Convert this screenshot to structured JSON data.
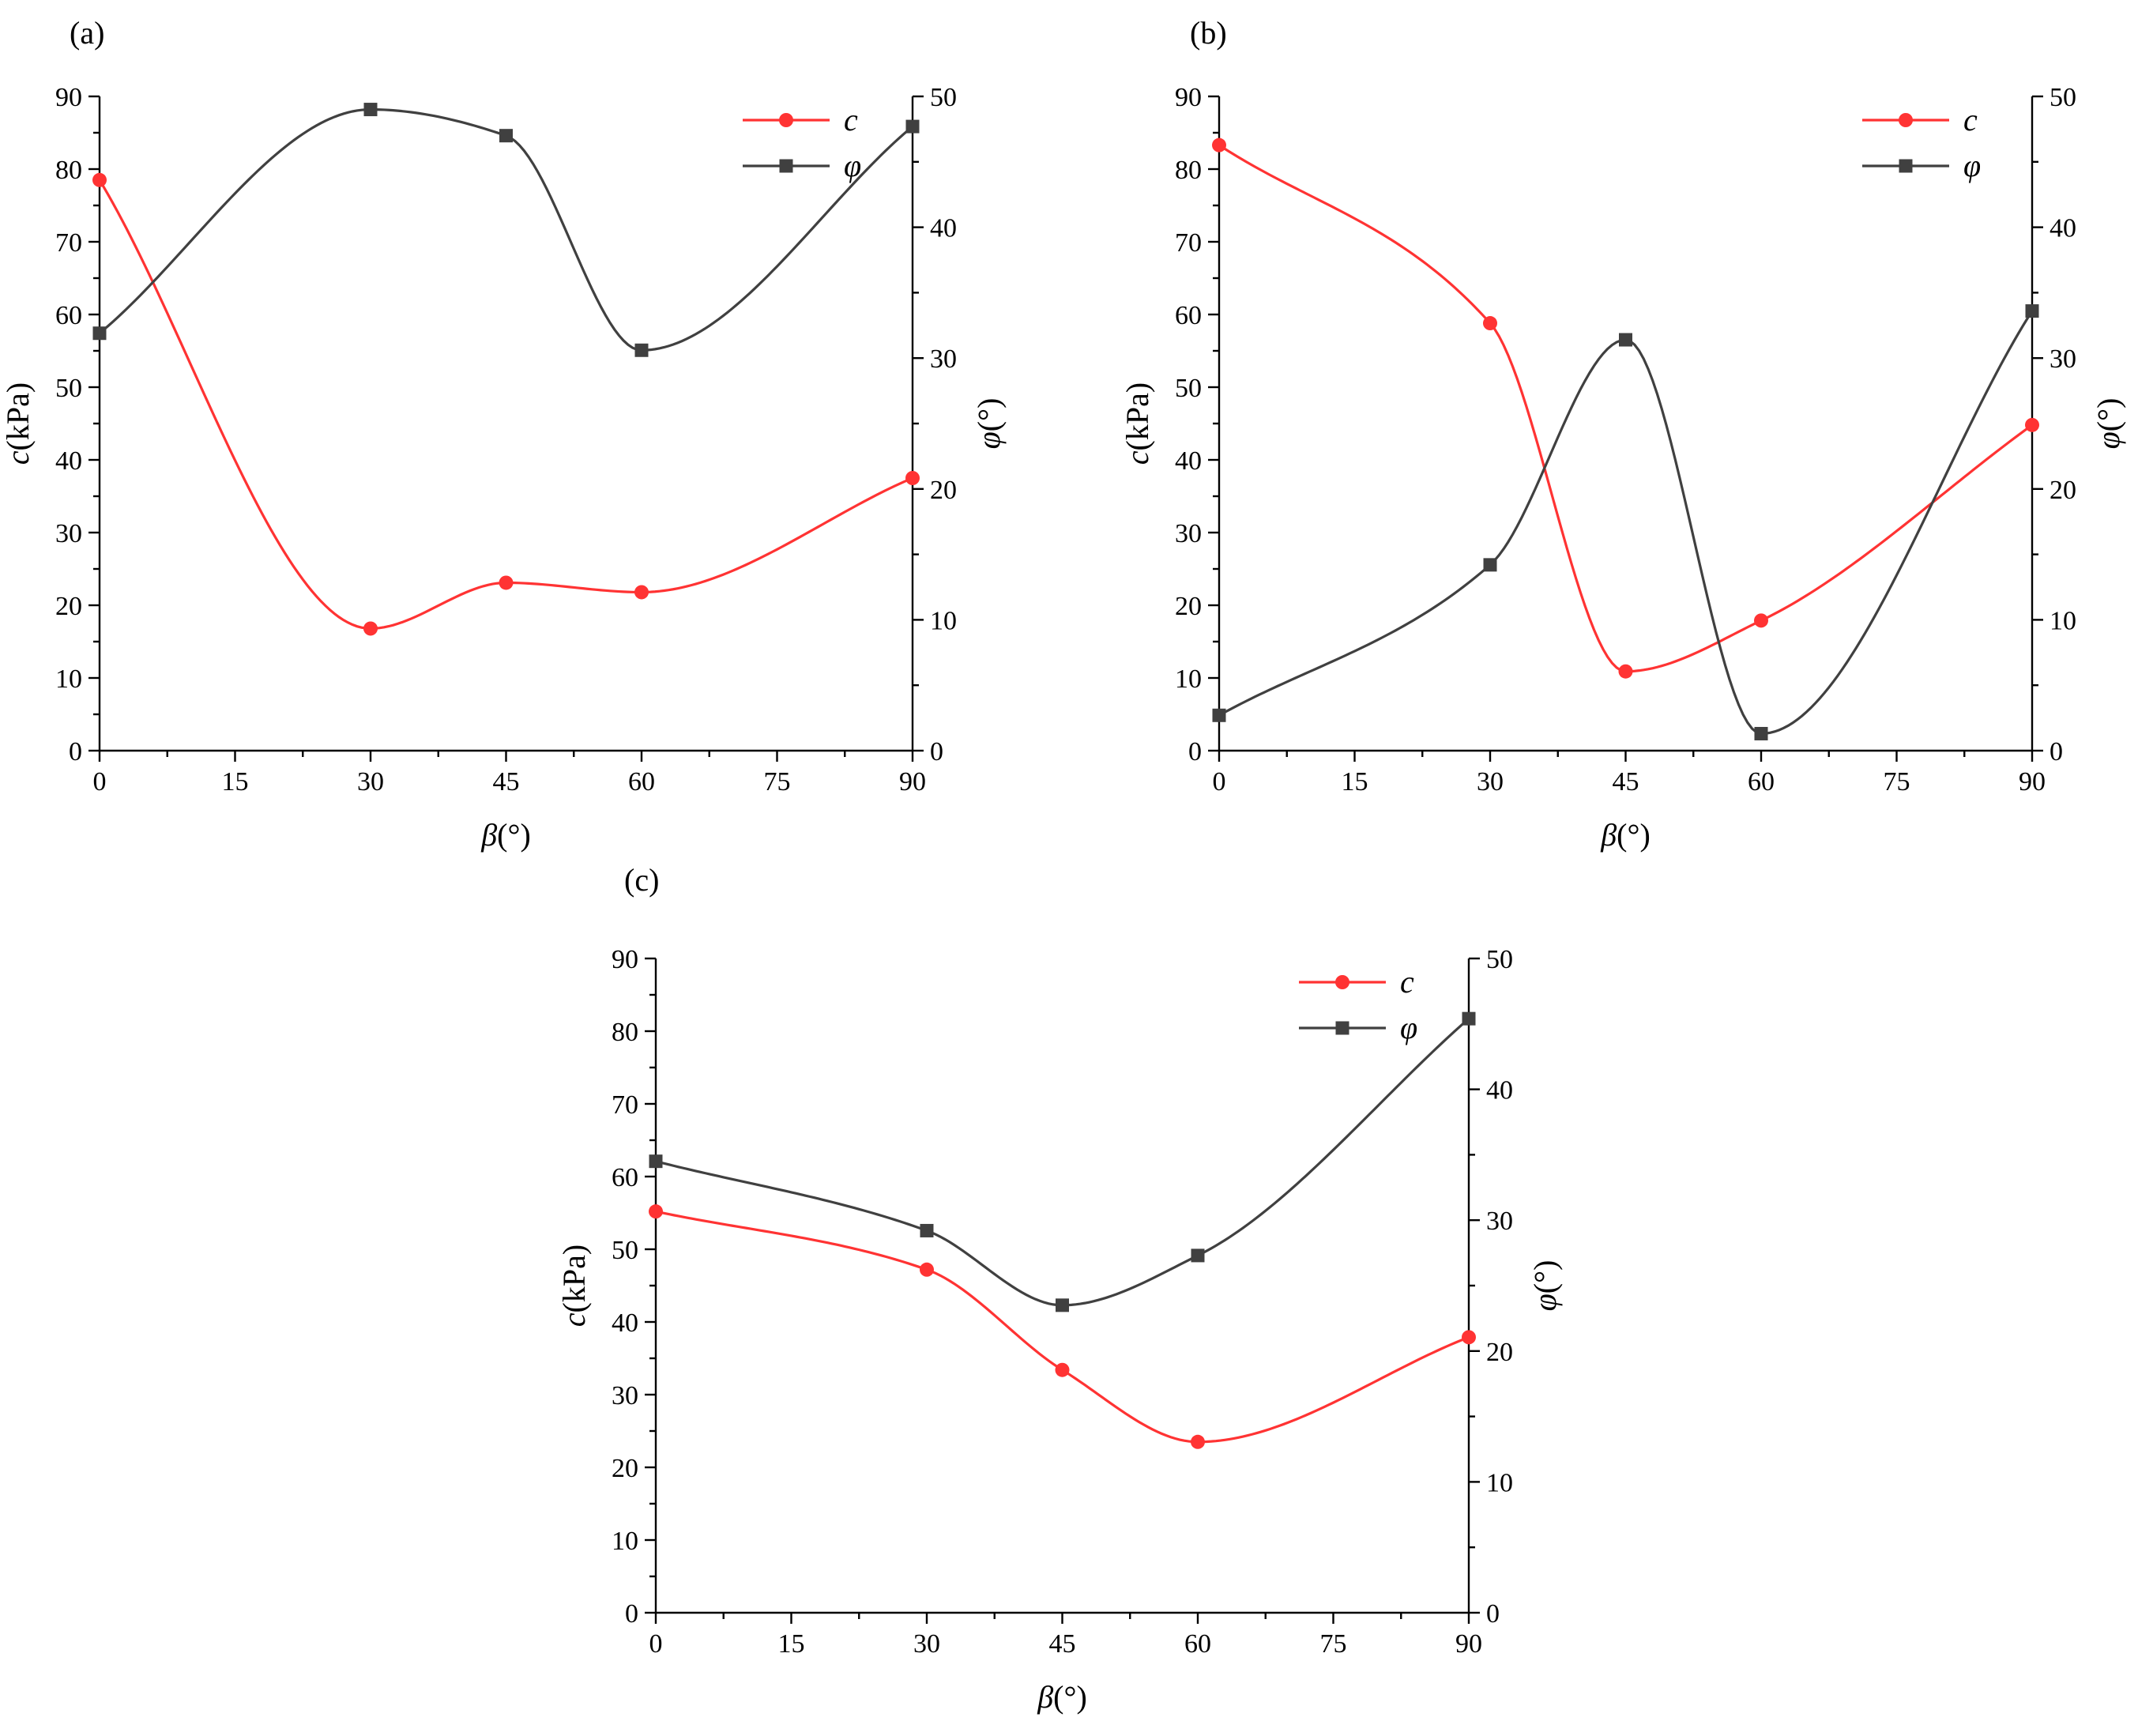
{
  "chart_data": [
    {
      "type": "line",
      "panel_label": "(a)",
      "xlabel_symbol": "β",
      "xlabel_unit": "(°)",
      "ylabel_left_symbol": "c",
      "ylabel_left_unit": "(kPa)",
      "ylabel_right_symbol": "φ",
      "ylabel_right_unit": "(°)",
      "xlim": [
        0,
        90
      ],
      "xticks": [
        0,
        15,
        30,
        45,
        60,
        75,
        90
      ],
      "ylim_left": [
        0,
        90
      ],
      "yticks_left": [
        0,
        10,
        20,
        30,
        40,
        50,
        60,
        70,
        80,
        90
      ],
      "ylim_right": [
        0,
        50
      ],
      "yticks_right": [
        0,
        10,
        20,
        30,
        40,
        50
      ],
      "legend_position": "top-right",
      "smooth": true,
      "grid": false,
      "x": [
        0,
        30,
        45,
        60,
        90
      ],
      "series": [
        {
          "name": "c",
          "axis": "left",
          "marker": "circle",
          "color": "#ff3333",
          "values": [
            78.5,
            16.8,
            23.1,
            21.8,
            37.5
          ]
        },
        {
          "name": "φ",
          "axis": "right",
          "marker": "square",
          "color": "#404040",
          "values": [
            31.9,
            49.0,
            47.0,
            30.6,
            47.7
          ]
        }
      ]
    },
    {
      "type": "line",
      "panel_label": "(b)",
      "xlabel_symbol": "β",
      "xlabel_unit": "(°)",
      "ylabel_left_symbol": "c",
      "ylabel_left_unit": "(kPa)",
      "ylabel_right_symbol": "φ",
      "ylabel_right_unit": "(°)",
      "xlim": [
        0,
        90
      ],
      "xticks": [
        0,
        15,
        30,
        45,
        60,
        75,
        90
      ],
      "ylim_left": [
        0,
        90
      ],
      "yticks_left": [
        0,
        10,
        20,
        30,
        40,
        50,
        60,
        70,
        80,
        90
      ],
      "ylim_right": [
        0,
        50
      ],
      "yticks_right": [
        0,
        10,
        20,
        30,
        40,
        50
      ],
      "legend_position": "top-right",
      "smooth": true,
      "grid": false,
      "x": [
        0,
        30,
        45,
        60,
        90
      ],
      "series": [
        {
          "name": "c",
          "axis": "left",
          "marker": "circle",
          "color": "#ff3333",
          "values": [
            83.3,
            58.8,
            10.9,
            17.9,
            44.8
          ]
        },
        {
          "name": "φ",
          "axis": "right",
          "marker": "square",
          "color": "#404040",
          "values": [
            2.7,
            14.2,
            31.4,
            1.3,
            33.6
          ]
        }
      ]
    },
    {
      "type": "line",
      "panel_label": "(c)",
      "xlabel_symbol": "β",
      "xlabel_unit": "(°)",
      "ylabel_left_symbol": "c",
      "ylabel_left_unit": "(kPa)",
      "ylabel_right_symbol": "φ",
      "ylabel_right_unit": "(°)",
      "xlim": [
        0,
        90
      ],
      "xticks": [
        0,
        15,
        30,
        45,
        60,
        75,
        90
      ],
      "ylim_left": [
        0,
        90
      ],
      "yticks_left": [
        0,
        10,
        20,
        30,
        40,
        50,
        60,
        70,
        80,
        90
      ],
      "ylim_right": [
        0,
        50
      ],
      "yticks_right": [
        0,
        10,
        20,
        30,
        40,
        50
      ],
      "legend_position": "top-right",
      "smooth": true,
      "grid": false,
      "x": [
        0,
        30,
        45,
        60,
        90
      ],
      "series": [
        {
          "name": "c",
          "axis": "left",
          "marker": "circle",
          "color": "#ff3333",
          "values": [
            55.2,
            47.2,
            33.4,
            23.5,
            37.9
          ]
        },
        {
          "name": "φ",
          "axis": "right",
          "marker": "square",
          "color": "#404040",
          "values": [
            34.5,
            29.2,
            23.5,
            27.3,
            45.4
          ]
        }
      ]
    }
  ]
}
